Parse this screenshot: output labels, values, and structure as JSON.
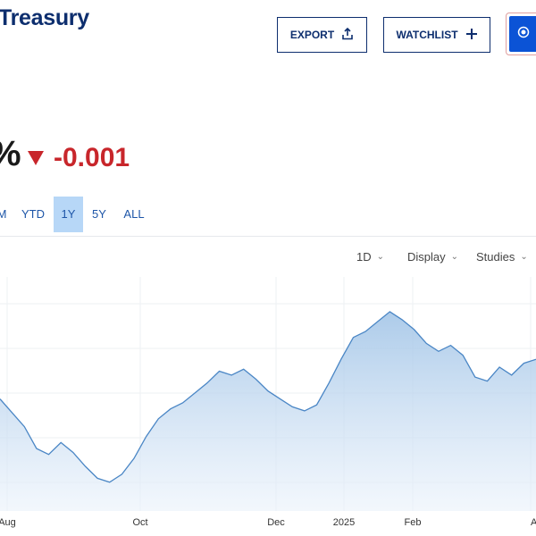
{
  "header": {
    "title_fragment": "Treasury",
    "export_label": "EXPORT",
    "watchlist_label": "WATCHLIST"
  },
  "quote": {
    "price_fragment": "%",
    "change": "-0.001",
    "change_color": "#c8262b"
  },
  "ranges": [
    {
      "label": "M",
      "active": false
    },
    {
      "label": "YTD",
      "active": false
    },
    {
      "label": "1Y",
      "active": true
    },
    {
      "label": "5Y",
      "active": false
    },
    {
      "label": "ALL",
      "active": false
    }
  ],
  "toolbar": {
    "interval": "1D",
    "display": "Display",
    "studies": "Studies"
  },
  "colors": {
    "brand": "#0d2e6e",
    "accent": "#0b53d6",
    "active_range_bg": "#b7d7f7",
    "line": "#4a86c5",
    "negative": "#c8262b"
  },
  "chart_data": {
    "type": "area",
    "x_tick_labels": [
      "Aug",
      "Oct",
      "Dec",
      "2025",
      "Feb",
      "A"
    ],
    "grid": true,
    "series": [
      {
        "values": [
          0.52,
          0.45,
          0.38,
          0.27,
          0.24,
          0.3,
          0.25,
          0.18,
          0.12,
          0.1,
          0.14,
          0.22,
          0.33,
          0.42,
          0.47,
          0.5,
          0.55,
          0.6,
          0.66,
          0.64,
          0.67,
          0.62,
          0.56,
          0.52,
          0.48,
          0.46,
          0.49,
          0.6,
          0.72,
          0.83,
          0.86,
          0.91,
          0.96,
          0.92,
          0.87,
          0.8,
          0.76,
          0.79,
          0.74,
          0.63,
          0.61,
          0.68,
          0.64,
          0.7,
          0.72
        ]
      }
    ]
  }
}
